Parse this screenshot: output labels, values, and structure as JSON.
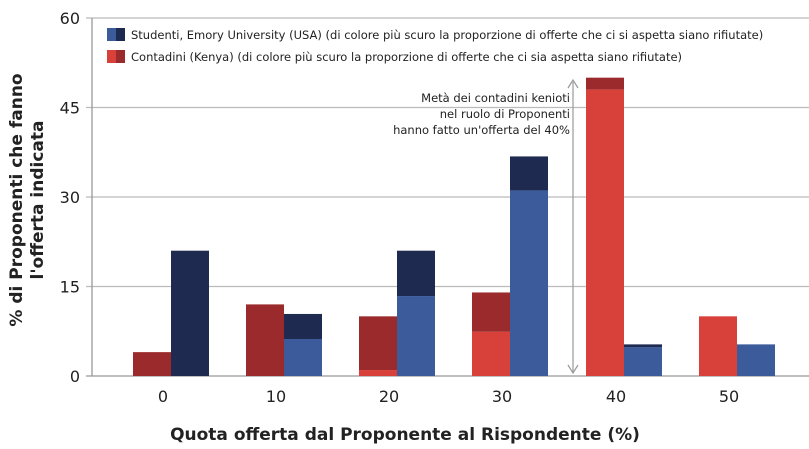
{
  "chart_data": {
    "type": "bar",
    "stacked_within_series": true,
    "xlabel": "Quota offerta dal Proponente al Rispondente (%)",
    "ylabel": "% di Proponenti che fanno l'offerta indicata",
    "ylabel_lines": [
      "% di Proponenti che fanno",
      "l'offerta indicata"
    ],
    "ylim": [
      0,
      60
    ],
    "yticks": [
      "0",
      "15",
      "30",
      "45",
      "60"
    ],
    "categories": [
      "0",
      "10",
      "20",
      "30",
      "40",
      "50"
    ],
    "grid": true,
    "legend_position": "top",
    "series": [
      {
        "name": "Contadini (Kenya) (di colore più scuro la proporzione di offerte che ci sia aspetta siano rifiutate)",
        "total": [
          4,
          12,
          10,
          14,
          50,
          10
        ],
        "accepted": [
          0,
          0,
          1,
          7.4,
          48,
          10
        ],
        "color_light": "#d8403a",
        "color_dark": "#9b2a2c"
      },
      {
        "name": "Studenti, Emory University (USA) (di colore più scuro la proporzione di offerte che ci si aspetta siano rifiutate)",
        "total": [
          21,
          10.4,
          21,
          36.8,
          5.3,
          5.3
        ],
        "accepted": [
          0,
          6.2,
          13.4,
          31.1,
          4.8,
          5.3
        ],
        "color_light": "#3b5b9b",
        "color_dark": "#1f2a50"
      }
    ],
    "annotation": [
      "Metà  dei contadini kenioti",
      "nel  ruolo di  Proponenti",
      "hanno  fatto  un'offerta del 40%"
    ]
  }
}
